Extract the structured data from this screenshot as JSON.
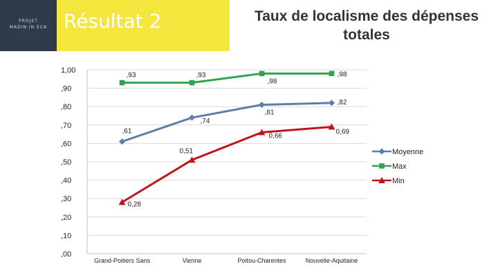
{
  "header": {
    "logo_line1": "PROJET",
    "logo_line2": "MADIN IN ECA",
    "logo_line3": "··· ··· ··· ··· ··· ···",
    "result_title": "Résultat 2",
    "banner_color": "#f5e63d",
    "logo_bg_color": "#2f3b4a"
  },
  "chart_data": {
    "type": "line",
    "title_lines": [
      "Taux de localisme des dépenses",
      "totales"
    ],
    "categories": [
      "Grand-Poitiers Sans",
      "Vienne",
      "Poitou-Charentes",
      "Nouvelle-Aquitaine"
    ],
    "ylim": [
      0,
      1
    ],
    "yticks": [
      {
        "value": 1.0,
        "label": "1,00"
      },
      {
        "value": 0.9,
        "label": ",90"
      },
      {
        "value": 0.8,
        "label": ",80"
      },
      {
        "value": 0.7,
        "label": ",70"
      },
      {
        "value": 0.6,
        "label": ",60"
      },
      {
        "value": 0.5,
        "label": ",50"
      },
      {
        "value": 0.4,
        "label": ",40"
      },
      {
        "value": 0.3,
        "label": ",30"
      },
      {
        "value": 0.2,
        "label": ",20"
      },
      {
        "value": 0.1,
        "label": ",10"
      },
      {
        "value": 0.0,
        "label": ",00"
      }
    ],
    "grid": true,
    "legend_position": "right",
    "series": [
      {
        "name": "Moyenne",
        "color": "#5b7fa8",
        "marker": "diamond",
        "values": [
          0.61,
          0.74,
          0.81,
          0.82
        ],
        "labels": [
          ",61",
          ",74",
          ",81",
          ",82"
        ]
      },
      {
        "name": "Max",
        "color": "#2fa34f",
        "marker": "square",
        "values": [
          0.93,
          0.93,
          0.98,
          0.98
        ],
        "labels": [
          ",93",
          ",93",
          ",98",
          ",98"
        ]
      },
      {
        "name": "Min",
        "color": "#c0141c",
        "marker": "triangle",
        "values": [
          0.28,
          0.51,
          0.66,
          0.69
        ],
        "labels": [
          "0,28",
          "0,51",
          "0,66",
          "0,69"
        ]
      }
    ]
  }
}
